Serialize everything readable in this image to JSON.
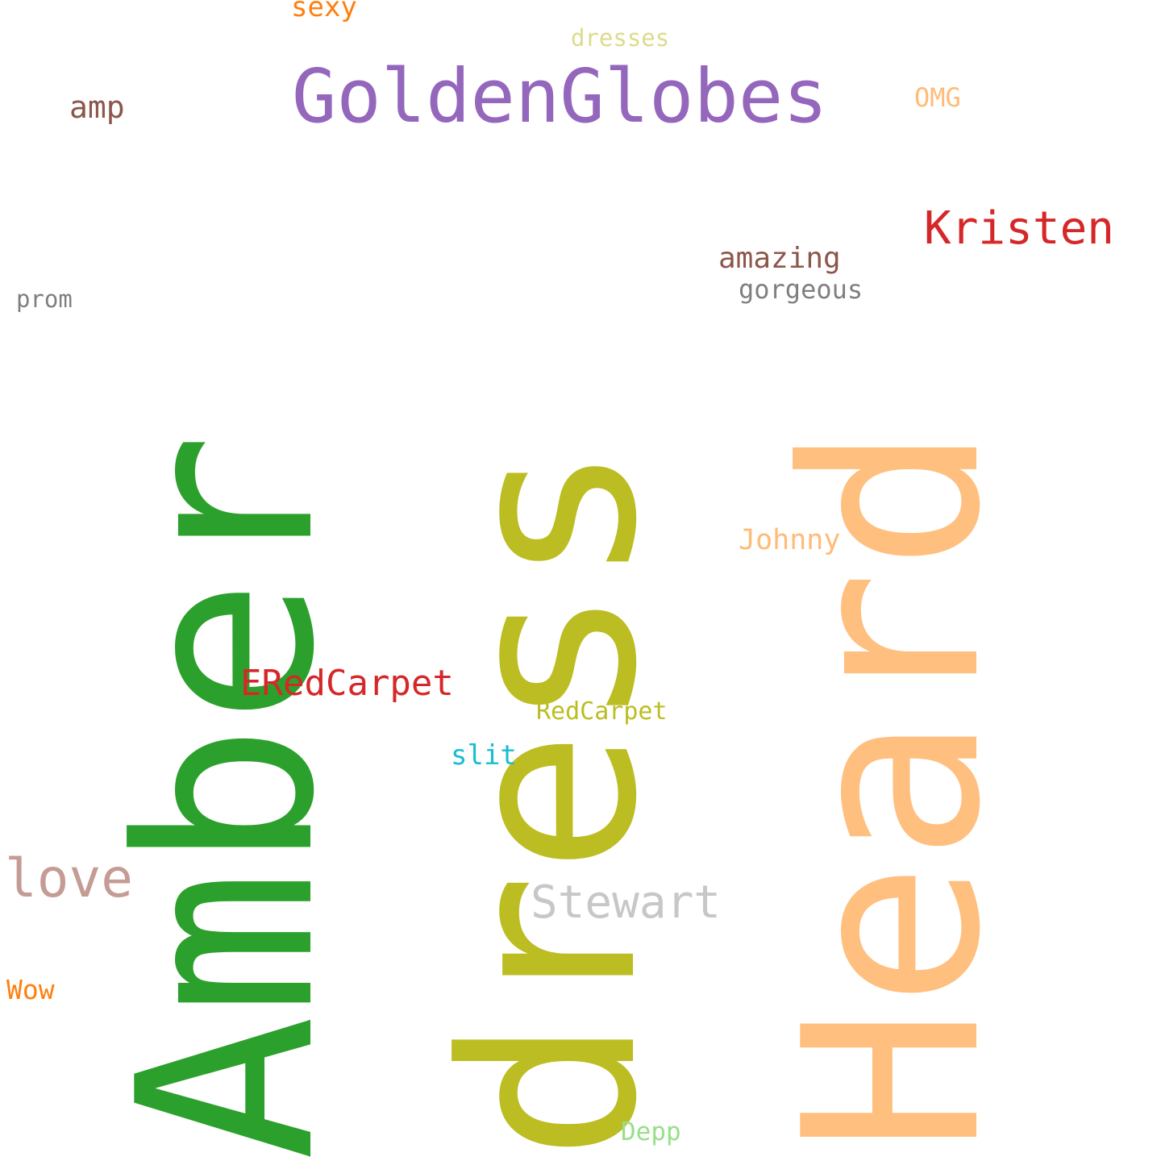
{
  "words": [
    {
      "text": "Amber",
      "color": "#2ca02c"
    },
    {
      "text": "dress",
      "color": "#bcbd22"
    },
    {
      "text": "Heard",
      "color": "#ffbf7f"
    },
    {
      "text": "GoldenGlobes",
      "color": "#9467bd"
    },
    {
      "text": "Kristen",
      "color": "#d62728"
    },
    {
      "text": "Stewart",
      "color": "#c7c7c7"
    },
    {
      "text": "love",
      "color": "#c49c94"
    },
    {
      "text": "ERedCarpet",
      "color": "#d62728"
    },
    {
      "text": "amazing",
      "color": "#8c564b"
    },
    {
      "text": "gorgeous",
      "color": "#7f7f7f"
    },
    {
      "text": "Johnny",
      "color": "#ffbb78"
    },
    {
      "text": "amp",
      "color": "#8c564b"
    },
    {
      "text": "sexy",
      "color": "#ff7f0e"
    },
    {
      "text": "dresses",
      "color": "#dbdb8d"
    },
    {
      "text": "OMG",
      "color": "#ffbb78"
    },
    {
      "text": "prom",
      "color": "#7f7f7f"
    },
    {
      "text": "RedCarpet",
      "color": "#bcbd22"
    },
    {
      "text": "slit",
      "color": "#17becf"
    },
    {
      "text": "Wow",
      "color": "#ff7f0e"
    },
    {
      "text": "Depp",
      "color": "#98df8a"
    }
  ]
}
